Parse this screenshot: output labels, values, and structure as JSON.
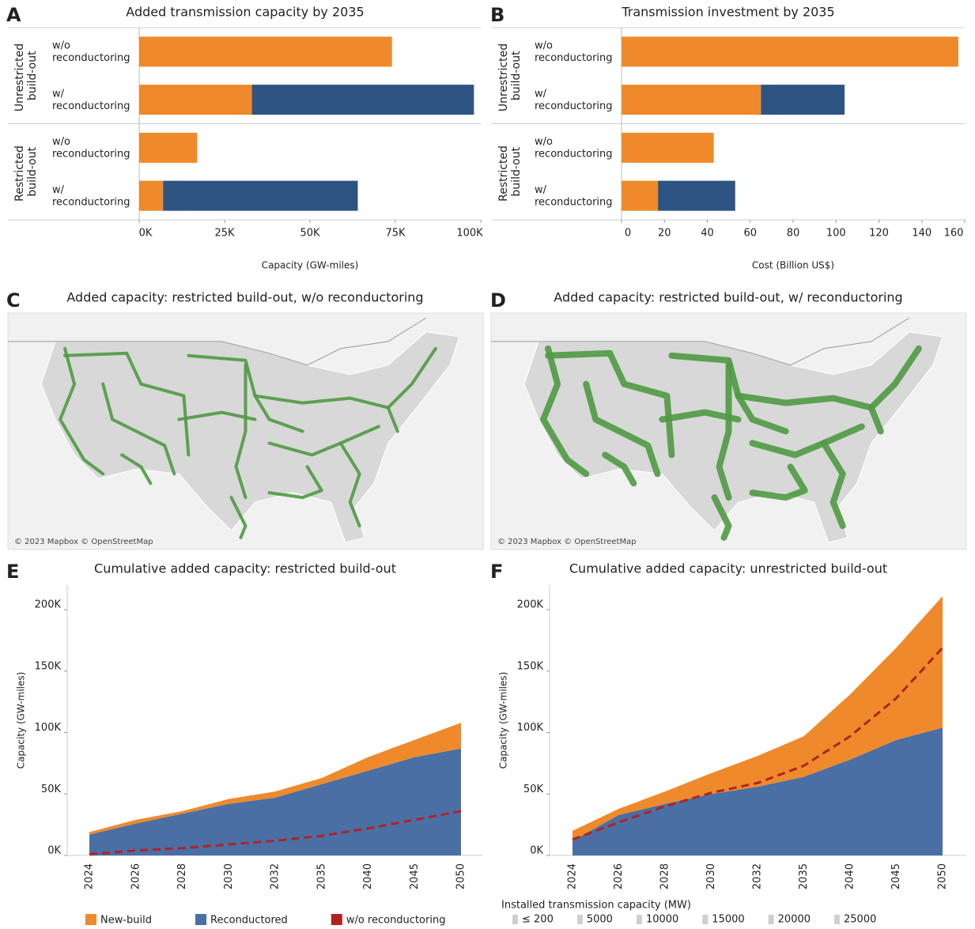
{
  "chart_data": [
    {
      "type": "hbar",
      "panel_label": "A",
      "title": "Added transmission capacity by 2035",
      "groups": [
        {
          "name": "Unrestricted build-out",
          "categories": [
            "w/o reconductoring",
            "w/ reconductoring"
          ]
        },
        {
          "name": "Restricted build-out",
          "categories": [
            "w/o reconductoring",
            "w/ reconductoring"
          ]
        }
      ],
      "series": [
        {
          "color": "#ee8a2b",
          "values": [
            74000,
            33000,
            17000,
            7000
          ]
        },
        {
          "color": "#2e5482",
          "values": [
            null,
            65000,
            null,
            57000
          ]
        }
      ],
      "xlabel": "Capacity (GW-miles)",
      "xlim": [
        0,
        100000
      ],
      "xticks": [
        {
          "value": 0,
          "label": "0K"
        },
        {
          "value": 25000,
          "label": "25K"
        },
        {
          "value": 50000,
          "label": "50K"
        },
        {
          "value": 75000,
          "label": "75K"
        },
        {
          "value": 100000,
          "label": "100K"
        }
      ]
    },
    {
      "type": "hbar",
      "panel_label": "B",
      "title": "Transmission investment by 2035",
      "groups": [
        {
          "name": "Unrestricted build-out",
          "categories": [
            "w/o reconductoring",
            "w/ reconductoring"
          ]
        },
        {
          "name": "Restricted build-out",
          "categories": [
            "w/o reconductoring",
            "w/ reconductoring"
          ]
        }
      ],
      "series": [
        {
          "color": "#ee8a2b",
          "values": [
            157,
            65,
            43,
            17
          ]
        },
        {
          "color": "#2e5482",
          "values": [
            null,
            39,
            null,
            36
          ]
        }
      ],
      "xlabel": "Cost (Billion US$)",
      "xlim": [
        0,
        160
      ],
      "xticks": [
        0,
        20,
        40,
        60,
        80,
        100,
        120,
        140,
        160
      ]
    },
    {
      "type": "map",
      "panel_label": "C",
      "title": "Added capacity: restricted build-out, w/o reconductoring",
      "attribution": "© 2023 Mapbox © OpenStreetMap"
    },
    {
      "type": "map",
      "panel_label": "D",
      "title": "Added capacity: restricted build-out, w/ reconductoring",
      "attribution": "© 2023 Mapbox © OpenStreetMap",
      "legend": {
        "title": "Installed transmission capacity (MW)",
        "items": [
          {
            "value": 200,
            "label": "≤ 200"
          },
          5000,
          10000,
          15000,
          20000,
          25000
        ]
      }
    },
    {
      "type": "area",
      "panel_label": "E",
      "title": "Cumulative added capacity: restricted build-out",
      "categories": [
        "2024",
        "2026",
        "2028",
        "2030",
        "2032",
        "2035",
        "2040",
        "2045",
        "2050"
      ],
      "ylabel": "Capacity (GW-miles)",
      "ylim": [
        0,
        220000
      ],
      "yticks": [
        {
          "value": 0,
          "label": "0K"
        },
        {
          "value": 50000,
          "label": "50K"
        },
        {
          "value": 100000,
          "label": "100K"
        },
        {
          "value": 150000,
          "label": "150K"
        },
        {
          "value": 200000,
          "label": "200K"
        }
      ],
      "series": [
        {
          "name": "New-build",
          "color": "#ee8a2b",
          "values": [
            2000,
            3000,
            2000,
            4000,
            5000,
            5000,
            11000,
            14000,
            21000
          ]
        },
        {
          "name": "Reconductored",
          "color": "#4a6fa5",
          "values": [
            17000,
            26000,
            34000,
            42000,
            47000,
            58000,
            69000,
            80000,
            87000
          ]
        },
        {
          "name": "w/o reconductoring",
          "color": "#b22222",
          "style": "dashed",
          "values": [
            1000,
            4000,
            6000,
            9000,
            12000,
            16000,
            22000,
            29000,
            36000
          ]
        }
      ]
    },
    {
      "type": "area",
      "panel_label": "F",
      "title": "Cumulative added capacity: unrestricted build-out",
      "categories": [
        "2024",
        "2026",
        "2028",
        "2030",
        "2032",
        "2035",
        "2040",
        "2045",
        "2050"
      ],
      "ylabel": "Capacity (GW-miles)",
      "ylim": [
        0,
        220000
      ],
      "yticks": [
        {
          "value": 0,
          "label": "0K"
        },
        {
          "value": 50000,
          "label": "50K"
        },
        {
          "value": 100000,
          "label": "100K"
        },
        {
          "value": 150000,
          "label": "150K"
        },
        {
          "value": 200000,
          "label": "200K"
        }
      ],
      "series": [
        {
          "color": "#ee8a2b",
          "values": [
            8000,
            5000,
            10000,
            17000,
            25000,
            33000,
            53000,
            75000,
            107000
          ]
        },
        {
          "color": "#4a6fa5",
          "values": [
            12000,
            33000,
            42000,
            50000,
            56000,
            64000,
            78000,
            94000,
            104000
          ]
        },
        {
          "color": "#b22222",
          "style": "dashed",
          "values": [
            13000,
            27000,
            40000,
            51000,
            59000,
            73000,
            97000,
            128000,
            169000
          ]
        }
      ]
    }
  ]
}
